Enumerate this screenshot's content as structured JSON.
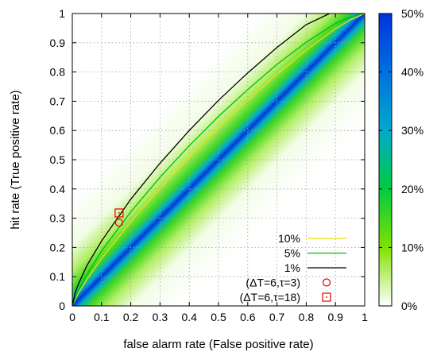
{
  "chart_data": {
    "type": "heatmap",
    "title": "",
    "xlabel": "false alarm rate (False positive rate)",
    "ylabel": "hit rate (True positive rate)",
    "xlim": [
      0,
      1
    ],
    "ylim": [
      0,
      1
    ],
    "x_ticks": [
      "0",
      "0.1",
      "0.2",
      "0.3",
      "0.4",
      "0.5",
      "0.6",
      "0.7",
      "0.8",
      "0.9",
      "1"
    ],
    "y_ticks": [
      "0",
      "0.1",
      "0.2",
      "0.3",
      "0.4",
      "0.5",
      "0.6",
      "0.7",
      "0.8",
      "0.9",
      "1"
    ],
    "grid": true,
    "legend_placement": "bottom-right",
    "colorbar": {
      "ticks": [
        "0%",
        "10%",
        "20%",
        "30%",
        "40%",
        "50%"
      ],
      "range": [
        0,
        50
      ],
      "colors": [
        "#ffffff",
        "#7fe200",
        "#00cc40",
        "#00aacc",
        "#0070e0",
        "#0033dd"
      ]
    },
    "significance_curves": [
      {
        "name": "10%",
        "color": "#f0e000",
        "x": [
          0,
          0.02,
          0.05,
          0.1,
          0.2,
          0.3,
          0.4,
          0.5,
          0.6,
          0.7,
          0.8,
          0.9,
          0.95,
          1
        ],
        "y": [
          0,
          0.042,
          0.091,
          0.162,
          0.288,
          0.402,
          0.508,
          0.608,
          0.703,
          0.792,
          0.875,
          0.948,
          0.978,
          1
        ]
      },
      {
        "name": "5%",
        "color": "#00c000",
        "x": [
          0,
          0.02,
          0.05,
          0.1,
          0.2,
          0.3,
          0.4,
          0.5,
          0.6,
          0.7,
          0.8,
          0.9,
          0.95,
          1
        ],
        "y": [
          0,
          0.052,
          0.108,
          0.188,
          0.322,
          0.44,
          0.548,
          0.648,
          0.74,
          0.826,
          0.902,
          0.966,
          0.988,
          1
        ]
      },
      {
        "name": "1%",
        "color": "#000000",
        "x": [
          0,
          0.01,
          0.02,
          0.05,
          0.1,
          0.2,
          0.3,
          0.4,
          0.5,
          0.6,
          0.7,
          0.8,
          0.88
        ],
        "y": [
          0,
          0.046,
          0.073,
          0.138,
          0.222,
          0.365,
          0.488,
          0.6,
          0.703,
          0.797,
          0.884,
          0.962,
          1
        ]
      }
    ],
    "points": [
      {
        "name": "(ΔT=6,τ=3)",
        "marker": "circle",
        "color": "#e00000",
        "x": 0.16,
        "y": 0.285
      },
      {
        "name": "(ΔT=6,τ=18)",
        "marker": "square",
        "color": "#e00000",
        "x": 0.16,
        "y": 0.318
      }
    ]
  }
}
